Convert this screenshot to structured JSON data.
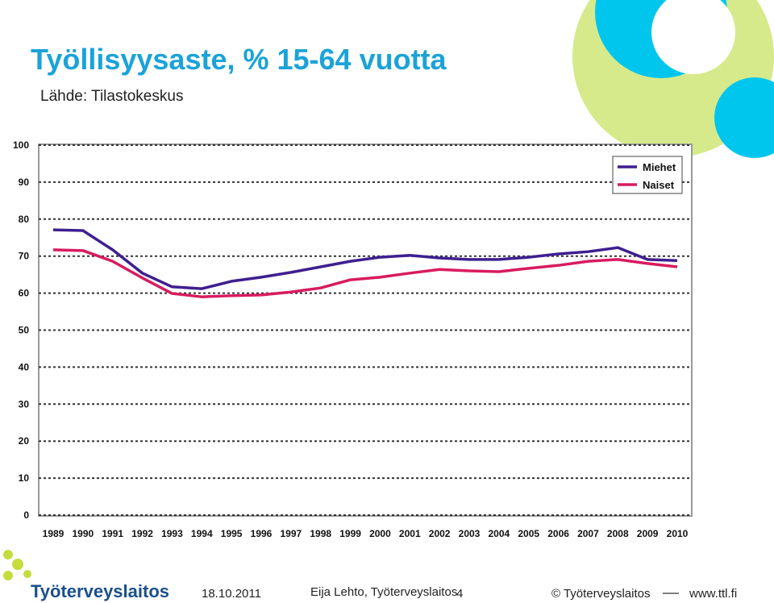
{
  "chart_data": {
    "type": "line",
    "title": "Työllisyysaste, % 15-64 vuotta",
    "subtitle": "Lähde: Tilastokeskus",
    "categories": [
      "1989",
      "1990",
      "1991",
      "1992",
      "1993",
      "1994",
      "1995",
      "1996",
      "1997",
      "1998",
      "1999",
      "2000",
      "2001",
      "2002",
      "2003",
      "2004",
      "2005",
      "2006",
      "2007",
      "2008",
      "2009",
      "2010"
    ],
    "series": [
      {
        "name": "Miehet",
        "color": "#3f1f8f",
        "values": [
          77.1,
          76.9,
          71.7,
          65.4,
          61.7,
          61.2,
          63.2,
          64.3,
          65.6,
          67.1,
          68.6,
          69.7,
          70.2,
          69.5,
          69.1,
          69.1,
          69.7,
          70.6,
          71.2,
          72.3,
          69.1,
          68.8
        ]
      },
      {
        "name": "Naiset",
        "color": "#d81b60",
        "values": [
          71.7,
          71.5,
          68.6,
          64.1,
          59.9,
          59.0,
          59.3,
          59.5,
          60.3,
          61.4,
          63.6,
          64.3,
          65.4,
          66.4,
          66.0,
          65.8,
          66.7,
          67.5,
          68.6,
          69.1,
          68.0,
          67.1
        ]
      }
    ],
    "ylim": [
      0,
      100
    ],
    "yticks": [
      0,
      10,
      20,
      30,
      40,
      50,
      60,
      70,
      80,
      90,
      100
    ],
    "grid": true,
    "legend": "upper right"
  },
  "footer": {
    "logo": "Työterveyslaitos",
    "date": "18.10.2011",
    "author": "Eija Lehto, Työterveyslaitos",
    "page": "4",
    "copyright": "© Työterveyslaitos",
    "url": "www.ttl.fi"
  }
}
